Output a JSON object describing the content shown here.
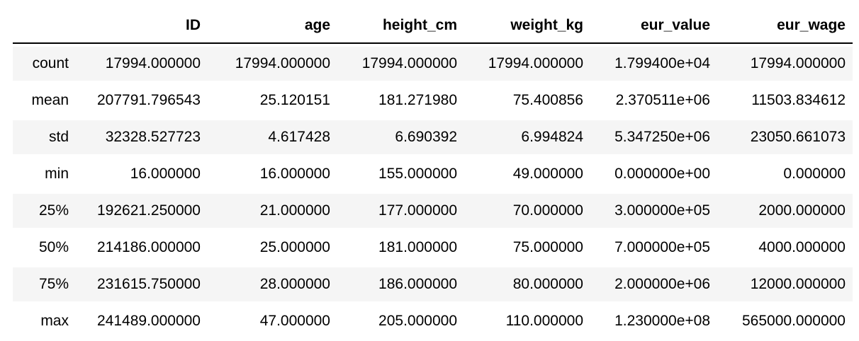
{
  "table": {
    "kind": "pandas-describe-output",
    "index_header": "",
    "columns": [
      "ID",
      "age",
      "height_cm",
      "weight_kg",
      "eur_value",
      "eur_wage"
    ],
    "rows": [
      {
        "label": "count",
        "values": [
          "17994.000000",
          "17994.000000",
          "17994.000000",
          "17994.000000",
          "1.799400e+04",
          "17994.000000"
        ]
      },
      {
        "label": "mean",
        "values": [
          "207791.796543",
          "25.120151",
          "181.271980",
          "75.400856",
          "2.370511e+06",
          "11503.834612"
        ]
      },
      {
        "label": "std",
        "values": [
          "32328.527723",
          "4.617428",
          "6.690392",
          "6.994824",
          "5.347250e+06",
          "23050.661073"
        ]
      },
      {
        "label": "min",
        "values": [
          "16.000000",
          "16.000000",
          "155.000000",
          "49.000000",
          "0.000000e+00",
          "0.000000"
        ]
      },
      {
        "label": "25%",
        "values": [
          "192621.250000",
          "21.000000",
          "177.000000",
          "70.000000",
          "3.000000e+05",
          "2000.000000"
        ]
      },
      {
        "label": "50%",
        "values": [
          "214186.000000",
          "25.000000",
          "181.000000",
          "75.000000",
          "7.000000e+05",
          "4000.000000"
        ]
      },
      {
        "label": "75%",
        "values": [
          "231615.750000",
          "28.000000",
          "186.000000",
          "80.000000",
          "2.000000e+06",
          "12000.000000"
        ]
      },
      {
        "label": "max",
        "values": [
          "241489.000000",
          "47.000000",
          "205.000000",
          "110.000000",
          "1.230000e+08",
          "565000.000000"
        ]
      }
    ],
    "colors": {
      "text": "#000000",
      "header_border": "#000000",
      "row_stripe": "#f5f5f5",
      "background": "#ffffff"
    }
  }
}
